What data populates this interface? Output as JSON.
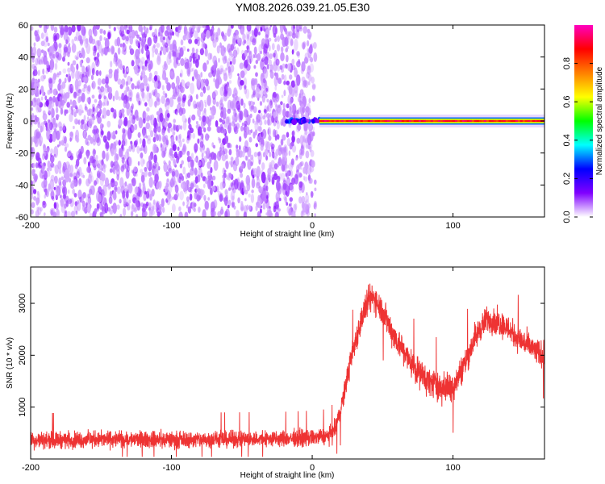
{
  "title": "YM08.2026.039.21.05.E30",
  "colorbar": {
    "label": "Normalized spectral amplitude",
    "ticks": [
      "0.0",
      "0.2",
      "0.4",
      "0.6",
      "0.8"
    ],
    "tick_values": [
      0.0,
      0.2,
      0.4,
      0.6,
      0.8
    ],
    "range": [
      0,
      1
    ],
    "colormap": [
      "#ffffff",
      "#8000ff",
      "#0000ff",
      "#00ffff",
      "#00ff00",
      "#ffff00",
      "#ff8000",
      "#ff0000",
      "#ff00c0"
    ]
  },
  "chart_data": [
    {
      "type": "heatmap",
      "xlabel": "Height of straight line (km)",
      "ylabel": "Frequency (Hz)",
      "xlim": [
        -200,
        165
      ],
      "ylim": [
        -60,
        60
      ],
      "x_ticks": [
        "-200",
        "-100",
        "0",
        "100"
      ],
      "x_tick_values": [
        -200,
        -100,
        0,
        100
      ],
      "y_ticks": [
        "-60",
        "-40",
        "-20",
        "0",
        "20",
        "40",
        "60"
      ],
      "y_tick_values": [
        -60,
        -40,
        -20,
        0,
        20,
        40,
        60
      ],
      "colormap": "rainbow (white-purple-blue-cyan-green-yellow-red-magenta)",
      "regions": [
        {
          "x_range": [
            -200,
            0
          ],
          "y_range": [
            -60,
            60
          ],
          "amplitude": [
            0.0,
            0.1
          ],
          "description": "noise"
        },
        {
          "x_range": [
            -20,
            5
          ],
          "y_range": [
            -2,
            2
          ],
          "amplitude": [
            0.1,
            0.3
          ]
        },
        {
          "x_range": [
            5,
            165
          ],
          "y_range": [
            -1,
            1
          ],
          "amplitude": [
            0.8,
            0.95
          ],
          "edge_amplitude": [
            0.3,
            0.5
          ]
        },
        {
          "x_range": [
            5,
            165
          ],
          "y_range": [
            -4,
            4
          ],
          "amplitude": [
            0.0,
            0.05
          ]
        }
      ]
    },
    {
      "type": "line",
      "xlabel": "Height of straight line (km)",
      "ylabel": "SNR (10 * v/v)",
      "xlim": [
        -200,
        165
      ],
      "ylim": [
        0,
        3700
      ],
      "x_ticks": [
        "-200",
        "-100",
        "0",
        "100"
      ],
      "x_tick_values": [
        -200,
        -100,
        0,
        100
      ],
      "y_ticks": [
        "1000",
        "2000",
        "3000"
      ],
      "y_tick_values": [
        1000,
        2000,
        3000
      ],
      "color": "#ee3333",
      "envelope": {
        "x": [
          -200,
          -150,
          -100,
          -50,
          -20,
          0,
          10,
          15,
          20,
          25,
          30,
          35,
          40,
          43,
          46,
          50,
          55,
          60,
          70,
          80,
          90,
          95,
          100,
          105,
          110,
          115,
          120,
          125,
          130,
          135,
          140,
          145,
          150,
          155,
          160,
          165
        ],
        "center": [
          360,
          380,
          370,
          380,
          390,
          410,
          440,
          500,
          900,
          1600,
          2200,
          2700,
          3050,
          3120,
          3050,
          2850,
          2550,
          2300,
          1850,
          1550,
          1400,
          1350,
          1420,
          1650,
          1950,
          2300,
          2550,
          2700,
          2650,
          2600,
          2500,
          2350,
          2250,
          2150,
          2050,
          2000
        ],
        "spread": [
          260,
          260,
          260,
          260,
          260,
          260,
          260,
          280,
          320,
          380,
          420,
          440,
          460,
          460,
          460,
          460,
          460,
          460,
          460,
          460,
          460,
          460,
          460,
          460,
          460,
          440,
          420,
          420,
          420,
          420,
          420,
          420,
          420,
          420,
          420,
          420
        ]
      }
    }
  ]
}
